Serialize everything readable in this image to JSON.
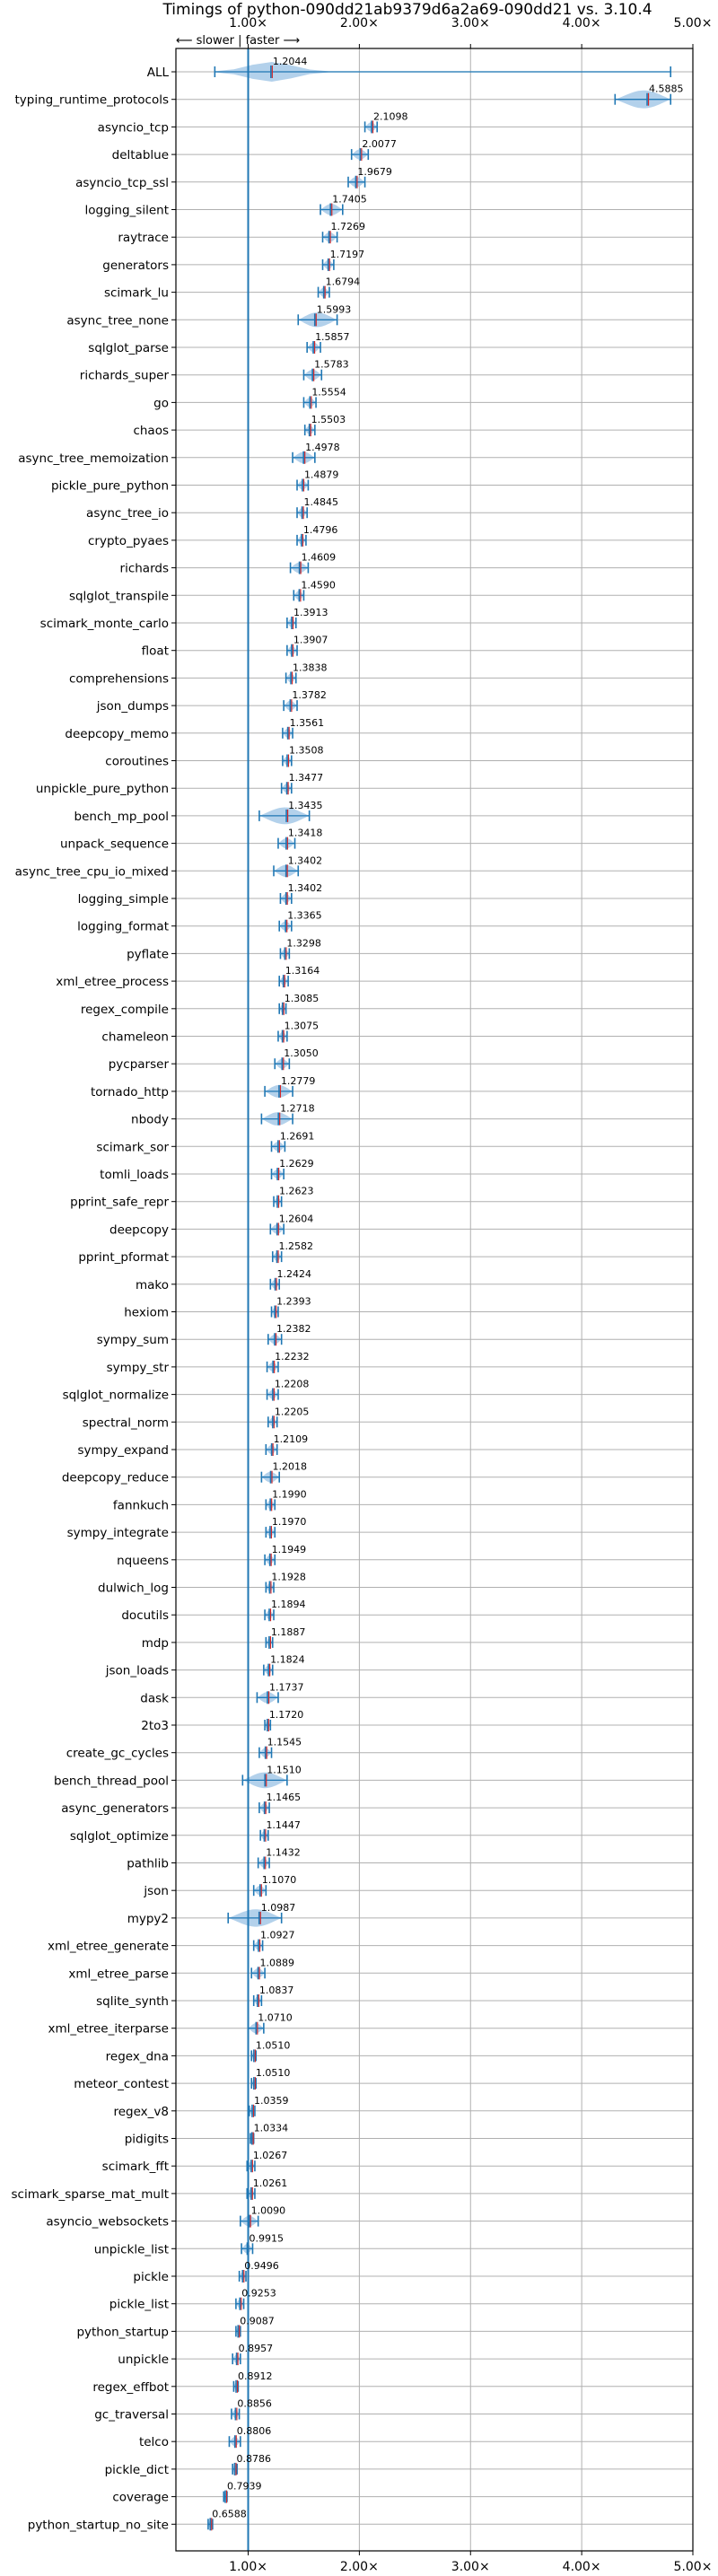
{
  "colors": {
    "violin": "#a6c9e8",
    "median": "#1f77b4",
    "mean": "#d62728",
    "grid": "#b0b0b0"
  },
  "chart_data": {
    "type": "violin",
    "title": "Timings of python-090dd21ab9379d6a2a69-090dd21 vs. 3.10.4",
    "direction_label": "⟵ slower | faster ⟶",
    "xlim": [
      0.35,
      5.0
    ],
    "xticks": [
      1.0,
      2.0,
      3.0,
      4.0,
      5.0
    ],
    "xtick_labels": [
      "1.00×",
      "2.00×",
      "3.00×",
      "4.00×",
      "5.00×"
    ],
    "reference_x": 1.0,
    "grid": true,
    "benchmarks": [
      {
        "name": "ALL",
        "value": 1.2044,
        "spread": [
          0.7,
          4.8
        ]
      },
      {
        "name": "typing_runtime_protocols",
        "value": 4.5885,
        "spread": [
          4.3,
          4.8
        ]
      },
      {
        "name": "asyncio_tcp",
        "value": 2.1098,
        "spread": [
          2.05,
          2.16
        ]
      },
      {
        "name": "deltablue",
        "value": 2.0077,
        "spread": [
          1.93,
          2.08
        ]
      },
      {
        "name": "asyncio_tcp_ssl",
        "value": 1.9679,
        "spread": [
          1.9,
          2.05
        ]
      },
      {
        "name": "logging_silent",
        "value": 1.7405,
        "spread": [
          1.65,
          1.85
        ]
      },
      {
        "name": "raytrace",
        "value": 1.7269,
        "spread": [
          1.67,
          1.8
        ]
      },
      {
        "name": "generators",
        "value": 1.7197,
        "spread": [
          1.67,
          1.77
        ]
      },
      {
        "name": "scimark_lu",
        "value": 1.6794,
        "spread": [
          1.63,
          1.73
        ]
      },
      {
        "name": "async_tree_none",
        "value": 1.5993,
        "spread": [
          1.45,
          1.8
        ]
      },
      {
        "name": "sqlglot_parse",
        "value": 1.5857,
        "spread": [
          1.53,
          1.65
        ]
      },
      {
        "name": "richards_super",
        "value": 1.5783,
        "spread": [
          1.5,
          1.66
        ]
      },
      {
        "name": "go",
        "value": 1.5554,
        "spread": [
          1.5,
          1.61
        ]
      },
      {
        "name": "chaos",
        "value": 1.5503,
        "spread": [
          1.51,
          1.6
        ]
      },
      {
        "name": "async_tree_memoization",
        "value": 1.4978,
        "spread": [
          1.4,
          1.6
        ]
      },
      {
        "name": "pickle_pure_python",
        "value": 1.4879,
        "spread": [
          1.44,
          1.54
        ]
      },
      {
        "name": "async_tree_io",
        "value": 1.4845,
        "spread": [
          1.44,
          1.53
        ]
      },
      {
        "name": "crypto_pyaes",
        "value": 1.4796,
        "spread": [
          1.44,
          1.52
        ]
      },
      {
        "name": "richards",
        "value": 1.4609,
        "spread": [
          1.38,
          1.54
        ]
      },
      {
        "name": "sqlglot_transpile",
        "value": 1.459,
        "spread": [
          1.41,
          1.5
        ]
      },
      {
        "name": "scimark_monte_carlo",
        "value": 1.3913,
        "spread": [
          1.35,
          1.43
        ]
      },
      {
        "name": "float",
        "value": 1.3907,
        "spread": [
          1.35,
          1.44
        ]
      },
      {
        "name": "comprehensions",
        "value": 1.3838,
        "spread": [
          1.34,
          1.43
        ]
      },
      {
        "name": "json_dumps",
        "value": 1.3782,
        "spread": [
          1.32,
          1.44
        ]
      },
      {
        "name": "deepcopy_memo",
        "value": 1.3561,
        "spread": [
          1.31,
          1.4
        ]
      },
      {
        "name": "coroutines",
        "value": 1.3508,
        "spread": [
          1.31,
          1.39
        ]
      },
      {
        "name": "unpickle_pure_python",
        "value": 1.3477,
        "spread": [
          1.3,
          1.39
        ]
      },
      {
        "name": "bench_mp_pool",
        "value": 1.3435,
        "spread": [
          1.1,
          1.55
        ]
      },
      {
        "name": "unpack_sequence",
        "value": 1.3418,
        "spread": [
          1.27,
          1.42
        ]
      },
      {
        "name": "async_tree_cpu_io_mixed",
        "value": 1.3402,
        "spread": [
          1.23,
          1.45
        ]
      },
      {
        "name": "logging_simple",
        "value": 1.3402,
        "spread": [
          1.29,
          1.39
        ]
      },
      {
        "name": "logging_format",
        "value": 1.3365,
        "spread": [
          1.28,
          1.39
        ]
      },
      {
        "name": "pyflate",
        "value": 1.3298,
        "spread": [
          1.29,
          1.37
        ]
      },
      {
        "name": "xml_etree_process",
        "value": 1.3164,
        "spread": [
          1.28,
          1.36
        ]
      },
      {
        "name": "regex_compile",
        "value": 1.3085,
        "spread": [
          1.28,
          1.34
        ]
      },
      {
        "name": "chameleon",
        "value": 1.3075,
        "spread": [
          1.27,
          1.35
        ]
      },
      {
        "name": "pycparser",
        "value": 1.305,
        "spread": [
          1.24,
          1.37
        ]
      },
      {
        "name": "tornado_http",
        "value": 1.2779,
        "spread": [
          1.15,
          1.4
        ]
      },
      {
        "name": "nbody",
        "value": 1.2718,
        "spread": [
          1.12,
          1.4
        ]
      },
      {
        "name": "scimark_sor",
        "value": 1.2691,
        "spread": [
          1.21,
          1.33
        ]
      },
      {
        "name": "tomli_loads",
        "value": 1.2629,
        "spread": [
          1.21,
          1.32
        ]
      },
      {
        "name": "pprint_safe_repr",
        "value": 1.2623,
        "spread": [
          1.23,
          1.3
        ]
      },
      {
        "name": "deepcopy",
        "value": 1.2604,
        "spread": [
          1.2,
          1.32
        ]
      },
      {
        "name": "pprint_pformat",
        "value": 1.2582,
        "spread": [
          1.22,
          1.3
        ]
      },
      {
        "name": "mako",
        "value": 1.2424,
        "spread": [
          1.2,
          1.28
        ]
      },
      {
        "name": "hexiom",
        "value": 1.2393,
        "spread": [
          1.21,
          1.27
        ]
      },
      {
        "name": "sympy_sum",
        "value": 1.2382,
        "spread": [
          1.18,
          1.3
        ]
      },
      {
        "name": "sympy_str",
        "value": 1.2232,
        "spread": [
          1.17,
          1.27
        ]
      },
      {
        "name": "sqlglot_normalize",
        "value": 1.2208,
        "spread": [
          1.17,
          1.27
        ]
      },
      {
        "name": "spectral_norm",
        "value": 1.2205,
        "spread": [
          1.18,
          1.26
        ]
      },
      {
        "name": "sympy_expand",
        "value": 1.2109,
        "spread": [
          1.16,
          1.26
        ]
      },
      {
        "name": "deepcopy_reduce",
        "value": 1.2018,
        "spread": [
          1.12,
          1.28
        ]
      },
      {
        "name": "fannkuch",
        "value": 1.199,
        "spread": [
          1.16,
          1.24
        ]
      },
      {
        "name": "sympy_integrate",
        "value": 1.197,
        "spread": [
          1.16,
          1.24
        ]
      },
      {
        "name": "nqueens",
        "value": 1.1949,
        "spread": [
          1.15,
          1.24
        ]
      },
      {
        "name": "dulwich_log",
        "value": 1.1928,
        "spread": [
          1.16,
          1.23
        ]
      },
      {
        "name": "docutils",
        "value": 1.1894,
        "spread": [
          1.15,
          1.23
        ]
      },
      {
        "name": "mdp",
        "value": 1.1887,
        "spread": [
          1.16,
          1.22
        ]
      },
      {
        "name": "json_loads",
        "value": 1.1824,
        "spread": [
          1.14,
          1.22
        ]
      },
      {
        "name": "dask",
        "value": 1.1737,
        "spread": [
          1.08,
          1.27
        ]
      },
      {
        "name": "2to3",
        "value": 1.172,
        "spread": [
          1.15,
          1.2
        ]
      },
      {
        "name": "create_gc_cycles",
        "value": 1.1545,
        "spread": [
          1.1,
          1.21
        ]
      },
      {
        "name": "bench_thread_pool",
        "value": 1.151,
        "spread": [
          0.95,
          1.35
        ]
      },
      {
        "name": "async_generators",
        "value": 1.1465,
        "spread": [
          1.1,
          1.19
        ]
      },
      {
        "name": "sqlglot_optimize",
        "value": 1.1447,
        "spread": [
          1.11,
          1.18
        ]
      },
      {
        "name": "pathlib",
        "value": 1.1432,
        "spread": [
          1.09,
          1.19
        ]
      },
      {
        "name": "json",
        "value": 1.107,
        "spread": [
          1.05,
          1.16
        ]
      },
      {
        "name": "mypy2",
        "value": 1.0987,
        "spread": [
          0.82,
          1.3
        ]
      },
      {
        "name": "xml_etree_generate",
        "value": 1.0927,
        "spread": [
          1.05,
          1.13
        ]
      },
      {
        "name": "xml_etree_parse",
        "value": 1.0889,
        "spread": [
          1.03,
          1.15
        ]
      },
      {
        "name": "sqlite_synth",
        "value": 1.0837,
        "spread": [
          1.05,
          1.12
        ]
      },
      {
        "name": "xml_etree_iterparse",
        "value": 1.071,
        "spread": [
          1.0,
          1.14
        ]
      },
      {
        "name": "regex_dna",
        "value": 1.051,
        "spread": [
          1.03,
          1.07
        ]
      },
      {
        "name": "meteor_contest",
        "value": 1.051,
        "spread": [
          1.03,
          1.07
        ]
      },
      {
        "name": "regex_v8",
        "value": 1.0359,
        "spread": [
          1.01,
          1.06
        ]
      },
      {
        "name": "pidigits",
        "value": 1.0334,
        "spread": [
          1.02,
          1.05
        ]
      },
      {
        "name": "scimark_fft",
        "value": 1.0267,
        "spread": [
          0.99,
          1.06
        ]
      },
      {
        "name": "scimark_sparse_mat_mult",
        "value": 1.0261,
        "spread": [
          0.99,
          1.06
        ]
      },
      {
        "name": "asyncio_websockets",
        "value": 1.009,
        "spread": [
          0.93,
          1.09
        ]
      },
      {
        "name": "unpickle_list",
        "value": 0.9915,
        "spread": [
          0.94,
          1.04
        ]
      },
      {
        "name": "pickle",
        "value": 0.9496,
        "spread": [
          0.92,
          0.98
        ]
      },
      {
        "name": "pickle_list",
        "value": 0.9253,
        "spread": [
          0.89,
          0.96
        ]
      },
      {
        "name": "python_startup",
        "value": 0.9087,
        "spread": [
          0.89,
          0.93
        ]
      },
      {
        "name": "unpickle",
        "value": 0.8957,
        "spread": [
          0.86,
          0.93
        ]
      },
      {
        "name": "regex_effbot",
        "value": 0.8912,
        "spread": [
          0.87,
          0.91
        ]
      },
      {
        "name": "gc_traversal",
        "value": 0.8856,
        "spread": [
          0.85,
          0.92
        ]
      },
      {
        "name": "telco",
        "value": 0.8806,
        "spread": [
          0.83,
          0.93
        ]
      },
      {
        "name": "pickle_dict",
        "value": 0.8786,
        "spread": [
          0.86,
          0.9
        ]
      },
      {
        "name": "coverage",
        "value": 0.7939,
        "spread": [
          0.78,
          0.81
        ]
      },
      {
        "name": "python_startup_no_site",
        "value": 0.6588,
        "spread": [
          0.64,
          0.68
        ]
      }
    ]
  }
}
